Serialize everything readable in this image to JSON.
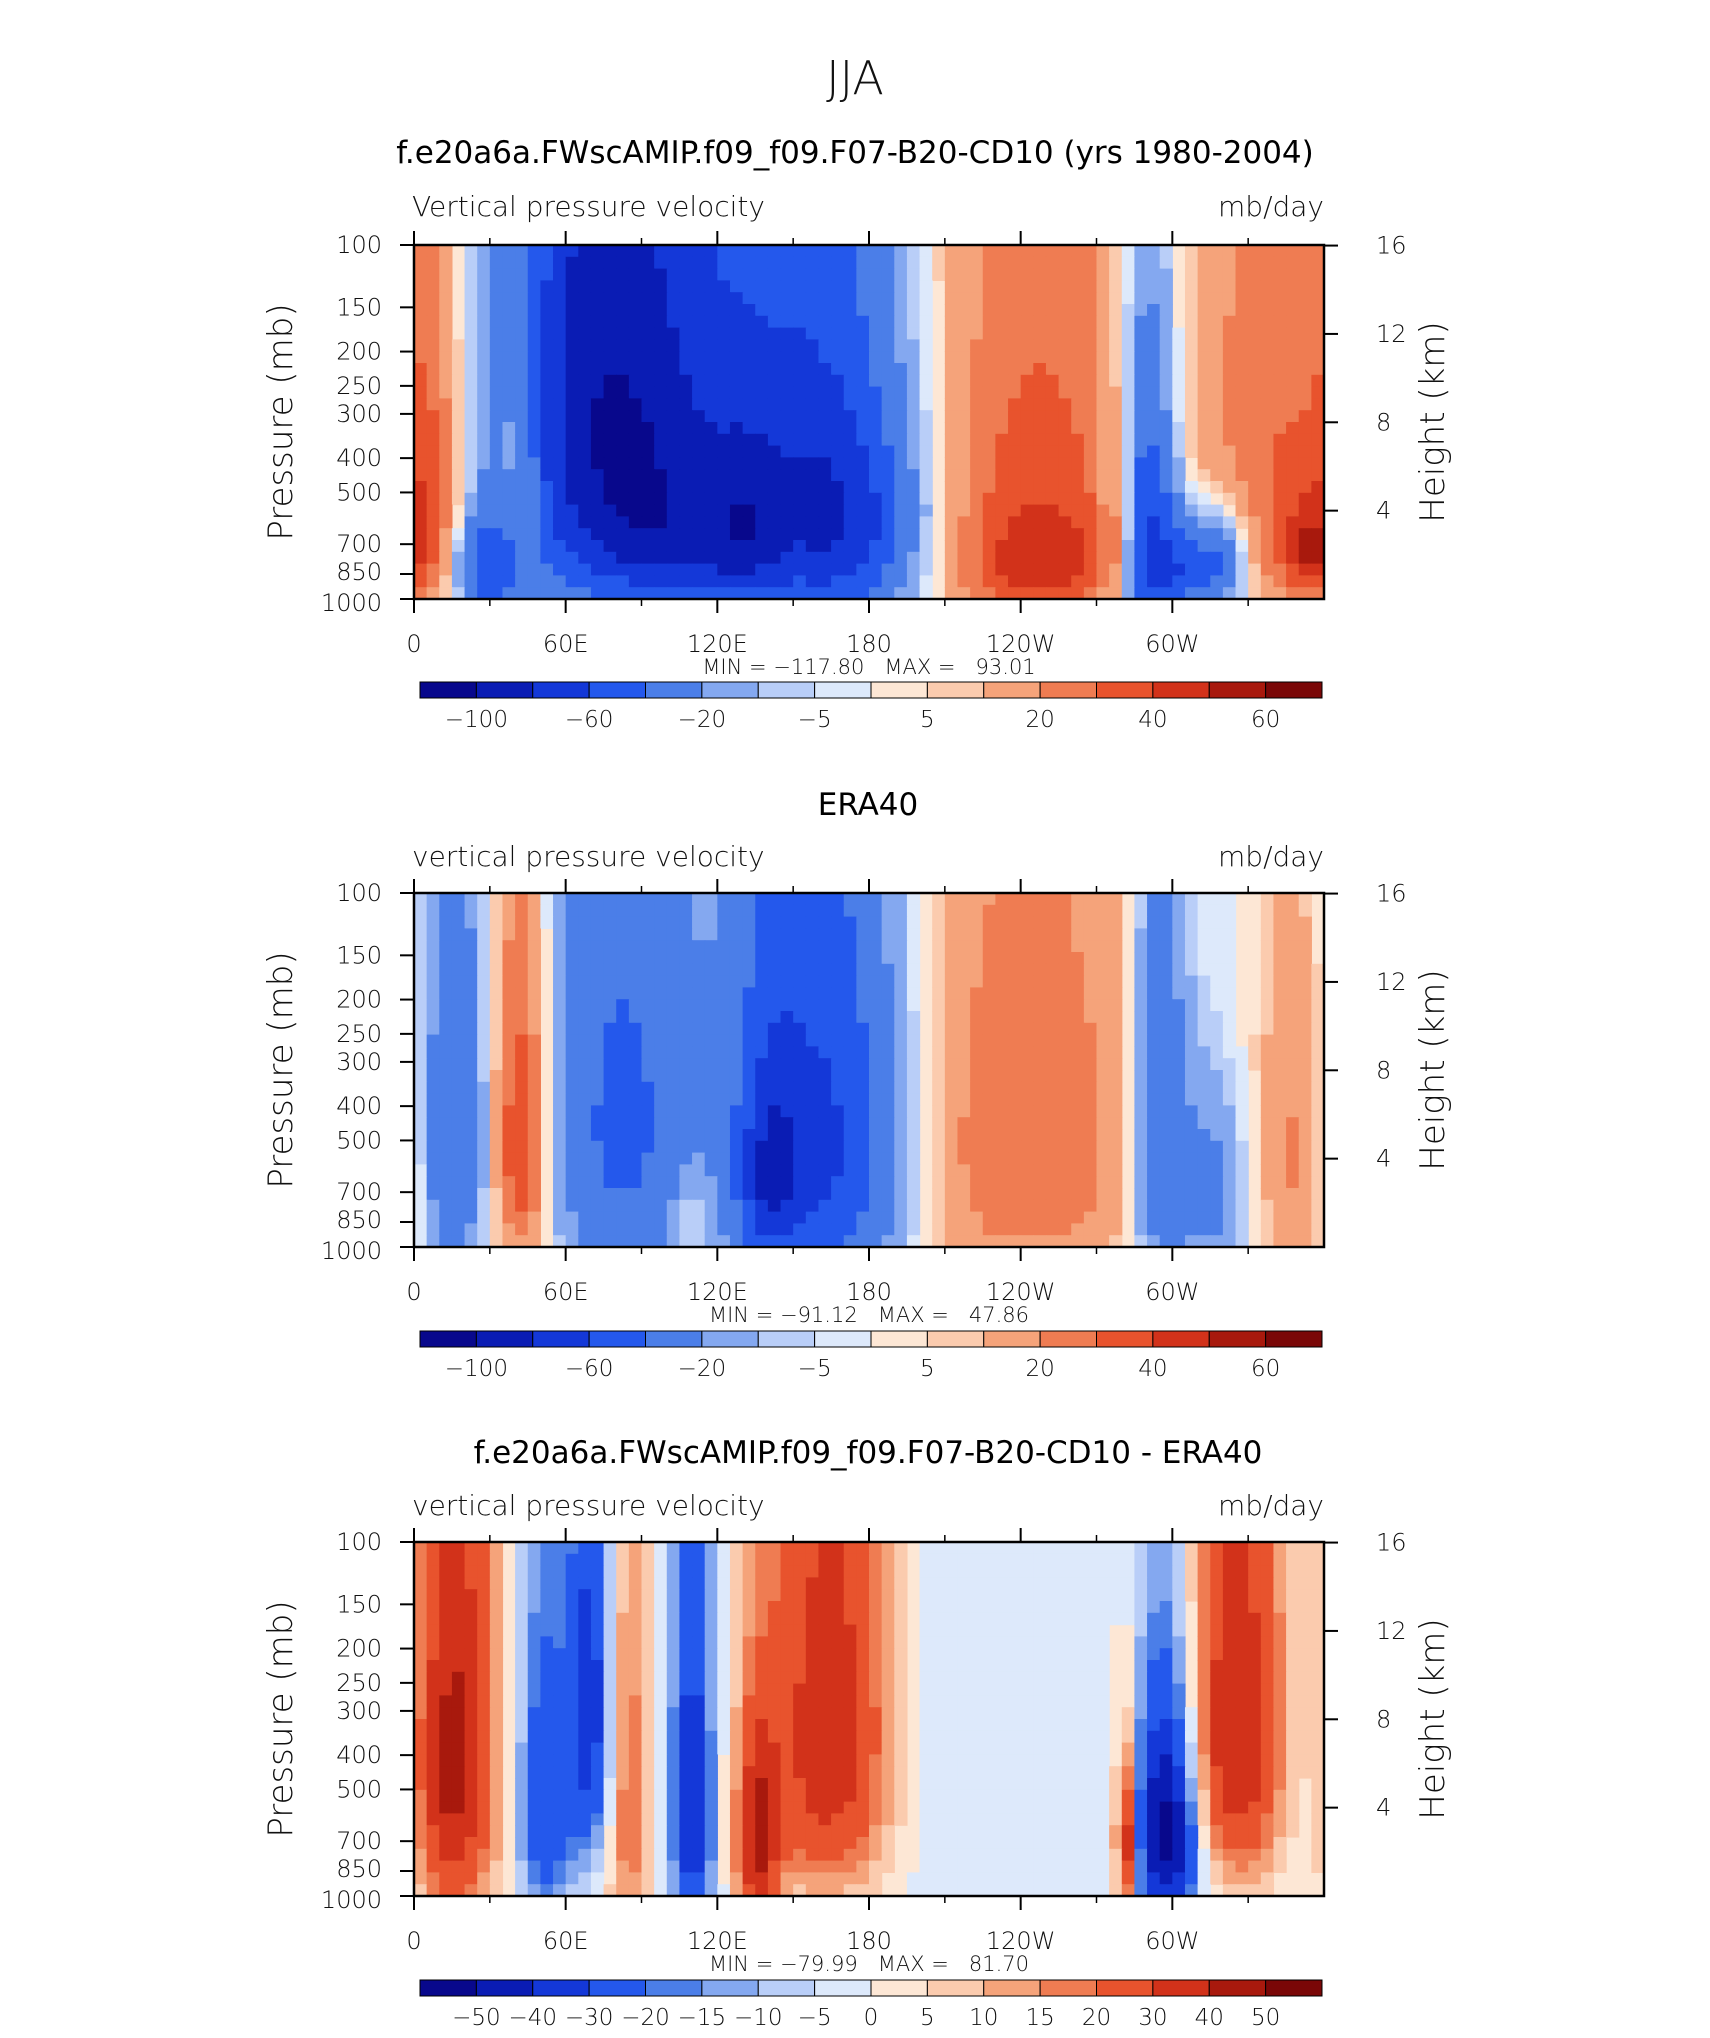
{
  "main_title": "JJA",
  "chart_data": [
    {
      "type": "heatmap",
      "title": "f.e20a6a.FWscAMIP.f09_f09.F07-B20-CD10 (yrs 1980-2004)",
      "subtitle_left": "Vertical pressure velocity",
      "units": "mb/day",
      "ylabel": "Pressure (mb)",
      "y2label": "Height (km)",
      "x_ticks": [
        "0",
        "60E",
        "120E",
        "180",
        "120W",
        "60W"
      ],
      "x_range": [
        0,
        360
      ],
      "y_ticks": [
        "100",
        "150",
        "200",
        "250",
        "300",
        "400",
        "500",
        "700",
        "850",
        "1000"
      ],
      "y_range_mb": [
        1000,
        100
      ],
      "y2_ticks": [
        "16",
        "12",
        "8",
        "4"
      ],
      "stats": "MIN = −117.80   MAX =   93.01",
      "colorbar_labels": [
        "−100",
        "−60",
        "−20",
        "−5",
        "5",
        "20",
        "40",
        "60"
      ],
      "blobs": [
        {
          "lon": 70,
          "p": 280,
          "amp": -70,
          "wl": 30,
          "wp": 420
        },
        {
          "lon": 95,
          "p": 450,
          "amp": -40,
          "wl": 30,
          "wp": 500
        },
        {
          "lon": 155,
          "p": 480,
          "amp": -60,
          "wl": 28,
          "wp": 460
        },
        {
          "lon": 175,
          "p": 650,
          "amp": -35,
          "wl": 20,
          "wp": 300
        },
        {
          "lon": 100,
          "p": 700,
          "amp": -25,
          "wl": 20,
          "wp": 200
        },
        {
          "lon": 30,
          "p": 820,
          "amp": -55,
          "wl": 10,
          "wp": 180
        },
        {
          "lon": 130,
          "p": 700,
          "amp": -30,
          "wl": 10,
          "wp": 250
        },
        {
          "lon": 8,
          "p": 500,
          "amp": 25,
          "wl": 10,
          "wp": 400
        },
        {
          "lon": 42,
          "p": 450,
          "amp": 30,
          "wl": 7,
          "wp": 380
        },
        {
          "lon": 246,
          "p": 500,
          "amp": 35,
          "wl": 35,
          "wp": 520
        },
        {
          "lon": 252,
          "p": 820,
          "amp": 20,
          "wl": 25,
          "wp": 180
        },
        {
          "lon": 290,
          "p": 650,
          "amp": -75,
          "wl": 9,
          "wp": 420
        },
        {
          "lon": 306,
          "p": 820,
          "amp": -50,
          "wl": 12,
          "wp": 180
        },
        {
          "lon": 280,
          "p": 650,
          "amp": 45,
          "wl": 2,
          "wp": 260
        },
        {
          "lon": 342,
          "p": 450,
          "amp": 30,
          "wl": 25,
          "wp": 450
        },
        {
          "lon": 354,
          "p": 750,
          "amp": 25,
          "wl": 8,
          "wp": 150
        },
        {
          "lon": 320,
          "p": 780,
          "amp": -30,
          "wl": 8,
          "wp": 200
        }
      ]
    },
    {
      "type": "heatmap",
      "title": "ERA40",
      "subtitle_left": "vertical pressure velocity",
      "units": "mb/day",
      "ylabel": "Pressure (mb)",
      "y2label": "Height (km)",
      "x_ticks": [
        "0",
        "60E",
        "120E",
        "180",
        "120W",
        "60W"
      ],
      "x_range": [
        0,
        360
      ],
      "y_ticks": [
        "100",
        "150",
        "200",
        "250",
        "300",
        "400",
        "500",
        "700",
        "850",
        "1000"
      ],
      "y_range_mb": [
        1000,
        100
      ],
      "y2_ticks": [
        "16",
        "12",
        "8",
        "4"
      ],
      "stats": "MIN = −91.12   MAX =   47.86",
      "colorbar_labels": [
        "−100",
        "−60",
        "−20",
        "−5",
        "5",
        "20",
        "40",
        "60"
      ],
      "blobs": [
        {
          "lon": 82,
          "p": 450,
          "amp": -45,
          "wl": 20,
          "wp": 500
        },
        {
          "lon": 160,
          "p": 520,
          "amp": -70,
          "wl": 25,
          "wp": 500
        },
        {
          "lon": 140,
          "p": 650,
          "amp": -40,
          "wl": 8,
          "wp": 300
        },
        {
          "lon": 15,
          "p": 500,
          "amp": -40,
          "wl": 10,
          "wp": 450
        },
        {
          "lon": 42,
          "p": 500,
          "amp": 45,
          "wl": 8,
          "wp": 400
        },
        {
          "lon": 240,
          "p": 500,
          "amp": 30,
          "wl": 38,
          "wp": 520
        },
        {
          "lon": 295,
          "p": 500,
          "amp": -45,
          "wl": 8,
          "wp": 450
        },
        {
          "lon": 315,
          "p": 700,
          "amp": -30,
          "wl": 10,
          "wp": 300
        },
        {
          "lon": 350,
          "p": 550,
          "amp": 22,
          "wl": 12,
          "wp": 400
        },
        {
          "lon": 110,
          "p": 800,
          "amp": 15,
          "wl": 6,
          "wp": 200
        }
      ]
    },
    {
      "type": "heatmap",
      "title": "f.e20a6a.FWscAMIP.f09_f09.F07-B20-CD10 - ERA40",
      "subtitle_left": "vertical pressure velocity",
      "units": "mb/day",
      "ylabel": "Pressure (mb)",
      "y2label": "Height (km)",
      "x_ticks": [
        "0",
        "60E",
        "120E",
        "180",
        "120W",
        "60W"
      ],
      "x_range": [
        0,
        360
      ],
      "y_ticks": [
        "100",
        "150",
        "200",
        "250",
        "300",
        "400",
        "500",
        "700",
        "850",
        "1000"
      ],
      "y_range_mb": [
        1000,
        100
      ],
      "y2_ticks": [
        "16",
        "12",
        "8",
        "4"
      ],
      "stats": "MIN = −79.99   MAX =   81.70",
      "colorbar_labels": [
        "−50",
        "−40",
        "−30",
        "−20",
        "−15",
        "−10",
        "−5",
        "0",
        "5",
        "10",
        "15",
        "20",
        "30",
        "40",
        "50"
      ],
      "blobs": [
        {
          "lon": 15,
          "p": 420,
          "amp": 45,
          "wl": 12,
          "wp": 450
        },
        {
          "lon": 52,
          "p": 550,
          "amp": -30,
          "wl": 8,
          "wp": 400
        },
        {
          "lon": 70,
          "p": 300,
          "amp": -35,
          "wl": 6,
          "wp": 300
        },
        {
          "lon": 85,
          "p": 550,
          "amp": 20,
          "wl": 6,
          "wp": 500
        },
        {
          "lon": 110,
          "p": 550,
          "amp": -40,
          "wl": 6,
          "wp": 450
        },
        {
          "lon": 136,
          "p": 700,
          "amp": 40,
          "wl": 6,
          "wp": 300
        },
        {
          "lon": 165,
          "p": 350,
          "amp": 40,
          "wl": 18,
          "wp": 400
        },
        {
          "lon": 200,
          "p": 350,
          "amp": -6,
          "wl": 25,
          "wp": 500
        },
        {
          "lon": 298,
          "p": 650,
          "amp": -60,
          "wl": 9,
          "wp": 350
        },
        {
          "lon": 282,
          "p": 700,
          "amp": 45,
          "wl": 3,
          "wp": 250
        },
        {
          "lon": 325,
          "p": 350,
          "amp": 40,
          "wl": 15,
          "wp": 350
        },
        {
          "lon": 355,
          "p": 450,
          "amp": -10,
          "wl": 10,
          "wp": 400
        }
      ]
    }
  ]
}
